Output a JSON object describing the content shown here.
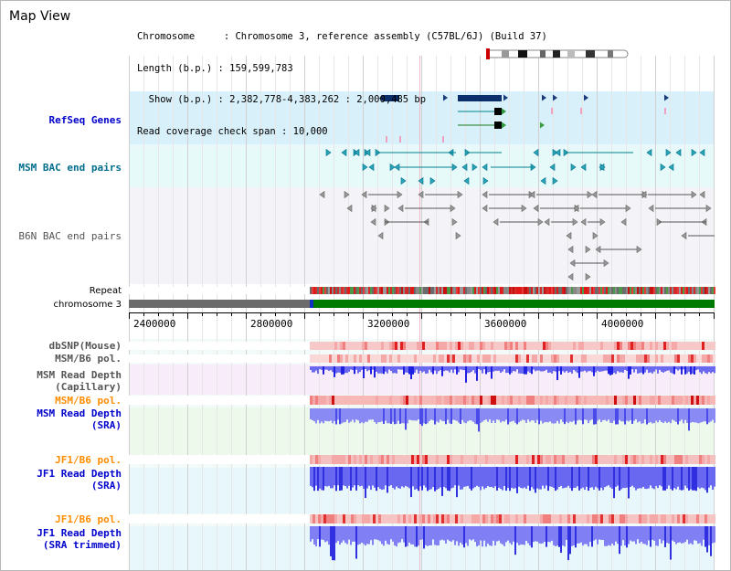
{
  "header": {
    "title": "Map View"
  },
  "info": {
    "line1": "Chromosome     : Chromosome 3, reference assembly (C57BL/6J) (Build 37)",
    "line2": "Length (b.p.) : 159,599,783",
    "line3": "  Show (b.p.) : 2,382,778-4,383,262 : 2,000,485 bp",
    "line4": "Read coverage check span : 10,000"
  },
  "tracks": {
    "refseq": "RefSeq Genes",
    "msm_bac": "MSM BAC end pairs",
    "b6n_bac": "B6N BAC end pairs",
    "repeat": "Repeat",
    "chromosome": "chromosome 3",
    "dbsnp": "dbSNP(Mouse)",
    "msm_b6_pol_1": "MSM/B6 pol.",
    "msm_read_depth_cap": "MSM Read Depth\n(Capillary)",
    "msm_b6_pol_2": "MSM/B6 pol.",
    "msm_read_depth_sra": "MSM Read Depth\n(SRA)",
    "jf1_b6_pol_1": "JF1/B6 pol.",
    "jf1_read_depth_sra": "JF1 Read Depth\n(SRA)",
    "jf1_b6_pol_2": "JF1/B6 pol.",
    "jf1_read_depth_trim": "JF1 Read Depth\n(SRA trimmed)"
  },
  "axis": {
    "ticks": [
      "2400000",
      "2800000",
      "3200000",
      "3600000",
      "4000000"
    ]
  },
  "colors": {
    "label_blue": "#0000cc",
    "label_teal": "#006e8c",
    "label_gray": "#555555",
    "label_orange": "#ff8c00",
    "refseq_bg": "#d8f0fa",
    "bac_bg": "#e6fafa",
    "chrom_green": "#007a00",
    "chrom_gray": "#6b6b6b"
  }
}
